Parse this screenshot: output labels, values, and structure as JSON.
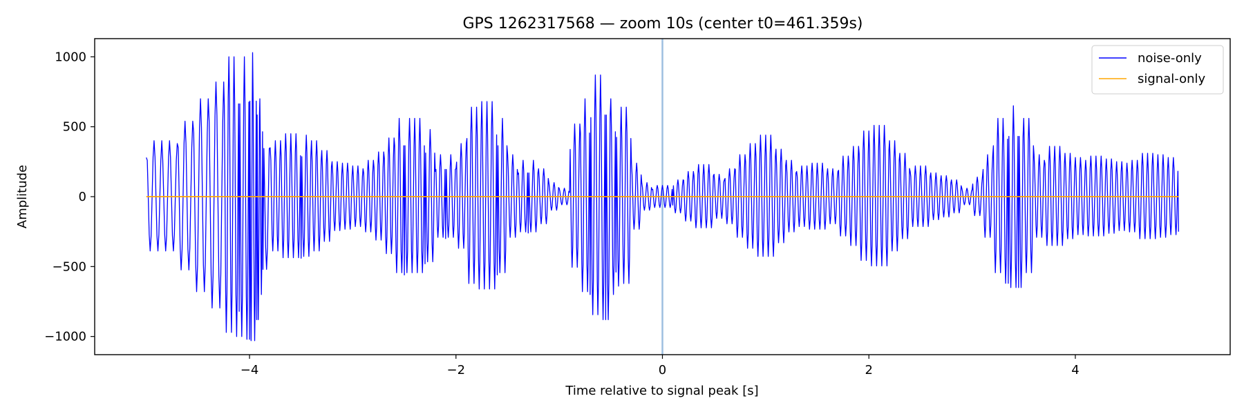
{
  "chart_data": {
    "type": "line",
    "title": "GPS 1262317568 — zoom 10s (center t0=461.359s)",
    "xlabel": "Time relative to signal peak [s]",
    "ylabel": "Amplitude",
    "xlim": [
      -5.5,
      5.5
    ],
    "ylim": [
      -1130,
      1130
    ],
    "xticks": [
      -4,
      -2,
      0,
      2,
      4
    ],
    "xtick_labels": [
      "−4",
      "−2",
      "0",
      "2",
      "4"
    ],
    "yticks": [
      1000,
      500,
      0,
      -500,
      -1000
    ],
    "ytick_labels": [
      "1000",
      "500",
      "0",
      "−500",
      "−1000"
    ],
    "grid": false,
    "legend_position": "upper right",
    "vline": {
      "x": 0,
      "color": "#9dbfe0"
    },
    "series": [
      {
        "name": "noise-only",
        "color": "#0000ff",
        "x": [
          -5.0,
          -4.85,
          -4.7,
          -4.55,
          -4.4,
          -4.25,
          -4.15,
          -4.1,
          -4.05,
          -4.0,
          -3.97,
          -3.93,
          -3.9,
          -3.87,
          -3.8,
          -3.7,
          -3.6,
          -3.5,
          -3.4,
          -3.3,
          -3.2,
          -3.1,
          -3.0,
          -2.9,
          -2.8,
          -2.7,
          -2.6,
          -2.5,
          -2.4,
          -2.3,
          -2.2,
          -2.1,
          -2.0,
          -1.9,
          -1.8,
          -1.7,
          -1.6,
          -1.5,
          -1.4,
          -1.3,
          -1.2,
          -1.1,
          -1.0,
          -0.9,
          -0.8,
          -0.7,
          -0.6,
          -0.55,
          -0.5,
          -0.45,
          -0.4,
          -0.3,
          -0.2,
          -0.1,
          0.0,
          0.1,
          0.2,
          0.3,
          0.4,
          0.5,
          0.6,
          0.7,
          0.8,
          0.9,
          1.0,
          1.1,
          1.2,
          1.3,
          1.4,
          1.5,
          1.6,
          1.7,
          1.8,
          1.9,
          2.0,
          2.1,
          2.2,
          2.3,
          2.4,
          2.5,
          2.6,
          2.7,
          2.8,
          2.9,
          3.0,
          3.1,
          3.2,
          3.3,
          3.35,
          3.4,
          3.45,
          3.5,
          3.6,
          3.7,
          3.8,
          3.9,
          4.0,
          4.1,
          4.2,
          4.3,
          4.4,
          4.5,
          4.6,
          4.7,
          4.8,
          4.9,
          5.0
        ],
        "y": [
          280,
          400,
          380,
          540,
          700,
          820,
          1000,
          -820,
          1000,
          -1020,
          1030,
          -880,
          700,
          -520,
          350,
          400,
          450,
          -440,
          400,
          330,
          250,
          240,
          220,
          200,
          260,
          320,
          420,
          -560,
          560,
          -480,
          180,
          -300,
          200,
          380,
          640,
          680,
          -560,
          300,
          160,
          -260,
          200,
          100,
          60,
          30,
          520,
          -700,
          870,
          -880,
          700,
          -540,
          640,
          240,
          100,
          50,
          80,
          -60,
          120,
          180,
          230,
          160,
          120,
          200,
          300,
          380,
          440,
          340,
          260,
          180,
          220,
          240,
          200,
          180,
          290,
          360,
          470,
          510,
          400,
          310,
          180,
          220,
          170,
          150,
          120,
          60,
          50,
          140,
          300,
          560,
          -620,
          650,
          -650,
          560,
          300,
          260,
          360,
          310,
          280,
          260,
          290,
          270,
          250,
          240,
          260,
          310,
          300,
          280,
          -250
        ]
      },
      {
        "name": "signal-only",
        "color": "#ffa500",
        "x": [
          -5.0,
          5.0
        ],
        "y": [
          0,
          0
        ]
      }
    ]
  }
}
